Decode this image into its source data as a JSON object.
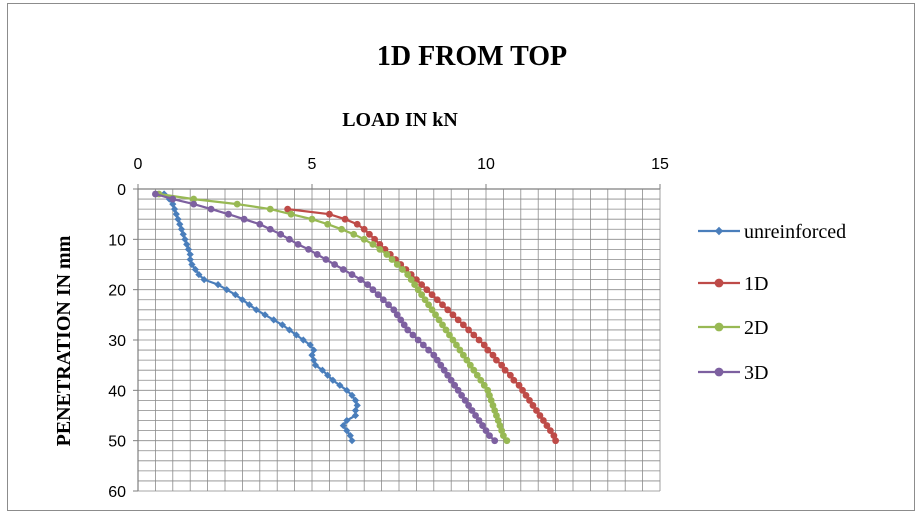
{
  "chart_data": {
    "type": "line",
    "title": "1D FROM TOP",
    "xlabel": "LOAD IN kN",
    "ylabel": "PENETRATION IN mm",
    "x_axis_position": "top",
    "y_axis_reversed": true,
    "xlim": [
      0,
      15
    ],
    "ylim": [
      0,
      60
    ],
    "x_ticks": [
      "0",
      "5",
      "10",
      "15"
    ],
    "y_ticks": [
      "0",
      "10",
      "20",
      "30",
      "40",
      "50",
      "60"
    ],
    "grid": true,
    "legend_position": "right",
    "series": [
      {
        "name": "unreinforced",
        "color": "#4a7ebb",
        "marker": "diamond",
        "points": [
          [
            0.75,
            1
          ],
          [
            0.9,
            2
          ],
          [
            1.0,
            3
          ],
          [
            1.05,
            4
          ],
          [
            1.1,
            5
          ],
          [
            1.15,
            6
          ],
          [
            1.2,
            7
          ],
          [
            1.25,
            8
          ],
          [
            1.3,
            9
          ],
          [
            1.35,
            10
          ],
          [
            1.4,
            11
          ],
          [
            1.45,
            12
          ],
          [
            1.5,
            13
          ],
          [
            1.5,
            14
          ],
          [
            1.55,
            15
          ],
          [
            1.65,
            16
          ],
          [
            1.75,
            17
          ],
          [
            1.9,
            18
          ],
          [
            2.3,
            19
          ],
          [
            2.55,
            20
          ],
          [
            2.8,
            21
          ],
          [
            3.0,
            22
          ],
          [
            3.2,
            23
          ],
          [
            3.4,
            24
          ],
          [
            3.65,
            25
          ],
          [
            3.9,
            26
          ],
          [
            4.15,
            27
          ],
          [
            4.35,
            28
          ],
          [
            4.55,
            29
          ],
          [
            4.75,
            30
          ],
          [
            4.95,
            31
          ],
          [
            5.05,
            32
          ],
          [
            5.0,
            33
          ],
          [
            5.05,
            34
          ],
          [
            5.1,
            35
          ],
          [
            5.3,
            36
          ],
          [
            5.45,
            37
          ],
          [
            5.6,
            38
          ],
          [
            5.8,
            39
          ],
          [
            6.0,
            40
          ],
          [
            6.15,
            41
          ],
          [
            6.25,
            42
          ],
          [
            6.3,
            43
          ],
          [
            6.25,
            44
          ],
          [
            6.25,
            45
          ],
          [
            6.0,
            46
          ],
          [
            5.9,
            47
          ],
          [
            6.0,
            48
          ],
          [
            6.1,
            49
          ],
          [
            6.15,
            50
          ]
        ]
      },
      {
        "name": "1D",
        "color": "#be4b48",
        "marker": "circle",
        "points": [
          [
            4.3,
            4
          ],
          [
            5.5,
            5
          ],
          [
            5.95,
            6
          ],
          [
            6.3,
            7
          ],
          [
            6.5,
            8
          ],
          [
            6.65,
            9
          ],
          [
            6.8,
            10
          ],
          [
            6.95,
            11
          ],
          [
            7.1,
            12
          ],
          [
            7.25,
            13
          ],
          [
            7.4,
            14
          ],
          [
            7.55,
            15
          ],
          [
            7.7,
            16
          ],
          [
            7.85,
            17
          ],
          [
            8.0,
            18
          ],
          [
            8.15,
            19
          ],
          [
            8.3,
            20
          ],
          [
            8.45,
            21
          ],
          [
            8.6,
            22
          ],
          [
            8.75,
            23
          ],
          [
            8.9,
            24
          ],
          [
            9.05,
            25
          ],
          [
            9.2,
            26
          ],
          [
            9.35,
            27
          ],
          [
            9.5,
            28
          ],
          [
            9.65,
            29
          ],
          [
            9.8,
            30
          ],
          [
            9.95,
            31
          ],
          [
            10.05,
            32
          ],
          [
            10.2,
            33
          ],
          [
            10.3,
            34
          ],
          [
            10.45,
            35
          ],
          [
            10.55,
            36
          ],
          [
            10.7,
            37
          ],
          [
            10.8,
            38
          ],
          [
            10.95,
            39
          ],
          [
            11.05,
            40
          ],
          [
            11.15,
            41
          ],
          [
            11.25,
            42
          ],
          [
            11.35,
            43
          ],
          [
            11.45,
            44
          ],
          [
            11.55,
            45
          ],
          [
            11.65,
            46
          ],
          [
            11.75,
            47
          ],
          [
            11.85,
            48
          ],
          [
            11.95,
            49
          ],
          [
            12.0,
            50
          ]
        ]
      },
      {
        "name": "2D",
        "color": "#98b954",
        "marker": "circle",
        "points": [
          [
            0.6,
            1
          ],
          [
            1.6,
            2
          ],
          [
            2.85,
            3
          ],
          [
            3.8,
            4
          ],
          [
            4.4,
            5
          ],
          [
            5.0,
            6
          ],
          [
            5.45,
            7
          ],
          [
            5.85,
            8
          ],
          [
            6.2,
            9
          ],
          [
            6.5,
            10
          ],
          [
            6.75,
            11
          ],
          [
            6.95,
            12
          ],
          [
            7.15,
            13
          ],
          [
            7.3,
            14
          ],
          [
            7.45,
            15
          ],
          [
            7.6,
            16
          ],
          [
            7.75,
            17
          ],
          [
            7.85,
            18
          ],
          [
            7.95,
            19
          ],
          [
            8.05,
            20
          ],
          [
            8.15,
            21
          ],
          [
            8.25,
            22
          ],
          [
            8.35,
            23
          ],
          [
            8.45,
            24
          ],
          [
            8.55,
            25
          ],
          [
            8.65,
            26
          ],
          [
            8.75,
            27
          ],
          [
            8.85,
            28
          ],
          [
            8.95,
            29
          ],
          [
            9.05,
            30
          ],
          [
            9.15,
            31
          ],
          [
            9.25,
            32
          ],
          [
            9.35,
            33
          ],
          [
            9.45,
            34
          ],
          [
            9.55,
            35
          ],
          [
            9.65,
            36
          ],
          [
            9.75,
            37
          ],
          [
            9.85,
            38
          ],
          [
            9.95,
            39
          ],
          [
            10.05,
            40
          ],
          [
            10.1,
            41
          ],
          [
            10.15,
            42
          ],
          [
            10.2,
            43
          ],
          [
            10.25,
            44
          ],
          [
            10.3,
            45
          ],
          [
            10.35,
            46
          ],
          [
            10.4,
            47
          ],
          [
            10.45,
            48
          ],
          [
            10.5,
            49
          ],
          [
            10.6,
            50
          ]
        ]
      },
      {
        "name": "3D",
        "color": "#7d60a0",
        "marker": "circle",
        "points": [
          [
            0.5,
            1
          ],
          [
            1.0,
            2
          ],
          [
            1.6,
            3
          ],
          [
            2.1,
            4
          ],
          [
            2.6,
            5
          ],
          [
            3.05,
            6
          ],
          [
            3.5,
            7
          ],
          [
            3.8,
            8
          ],
          [
            4.1,
            9
          ],
          [
            4.35,
            10
          ],
          [
            4.6,
            11
          ],
          [
            4.9,
            12
          ],
          [
            5.15,
            13
          ],
          [
            5.4,
            14
          ],
          [
            5.65,
            15
          ],
          [
            5.9,
            16
          ],
          [
            6.15,
            17
          ],
          [
            6.4,
            18
          ],
          [
            6.6,
            19
          ],
          [
            6.75,
            20
          ],
          [
            6.9,
            21
          ],
          [
            7.05,
            22
          ],
          [
            7.2,
            23
          ],
          [
            7.35,
            24
          ],
          [
            7.45,
            25
          ],
          [
            7.55,
            26
          ],
          [
            7.65,
            27
          ],
          [
            7.75,
            28
          ],
          [
            7.9,
            29
          ],
          [
            8.05,
            30
          ],
          [
            8.2,
            31
          ],
          [
            8.35,
            32
          ],
          [
            8.5,
            33
          ],
          [
            8.6,
            34
          ],
          [
            8.7,
            35
          ],
          [
            8.8,
            36
          ],
          [
            8.9,
            37
          ],
          [
            9.0,
            38
          ],
          [
            9.1,
            39
          ],
          [
            9.2,
            40
          ],
          [
            9.3,
            41
          ],
          [
            9.4,
            42
          ],
          [
            9.5,
            43
          ],
          [
            9.6,
            44
          ],
          [
            9.7,
            45
          ],
          [
            9.8,
            46
          ],
          [
            9.9,
            47
          ],
          [
            10.0,
            48
          ],
          [
            10.1,
            49
          ],
          [
            10.25,
            50
          ]
        ]
      }
    ]
  }
}
